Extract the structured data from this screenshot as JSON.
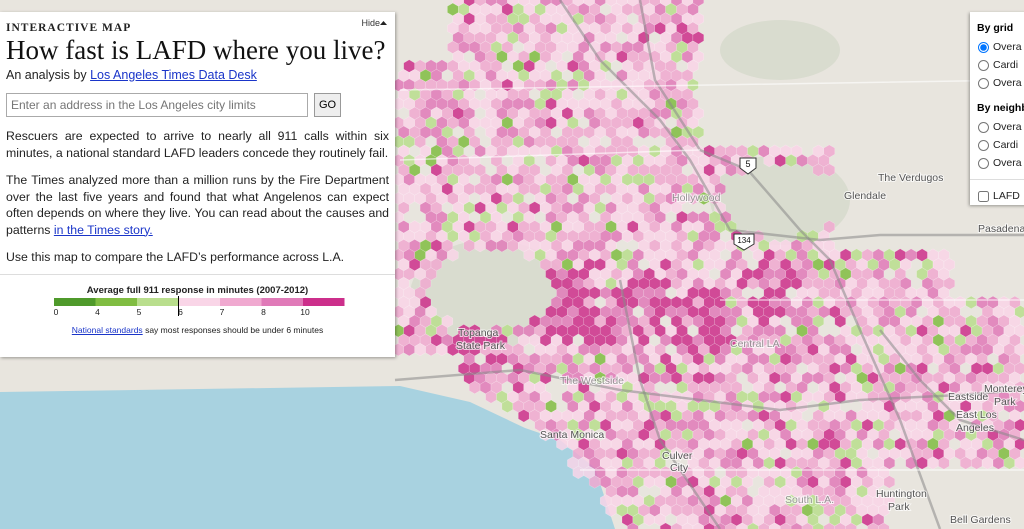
{
  "panel": {
    "kicker": "INTERACTIVE MAP",
    "hide": "Hide",
    "title": "How fast is LAFD where you live?",
    "byline_prefix": "An analysis by",
    "byline_link": "Los Angeles Times Data Desk",
    "search_placeholder": "Enter an address in the Los Angeles city limits",
    "go": "GO",
    "paragraph_1": "Rescuers are expected to arrive to nearly all 911 calls within six minutes, a national standard LAFD leaders concede they routinely fail.",
    "paragraph_2": "The Times analyzed more than a million runs by the Fire Department over the last five years and found that what Angelenos can expect often depends on where they live. You can read about the causes and patterns",
    "paragraph_2_link": "in the Times story.",
    "paragraph_3": "Use this map to compare the LAFD’s performance across L.A."
  },
  "legend": {
    "title": "Average full 911 response in minutes (2007-2012)",
    "colors": [
      "#4f9a2b",
      "#80bd42",
      "#b9de8d",
      "#f9d5e7",
      "#f0a9d0",
      "#e07ab8",
      "#cc2f8b"
    ],
    "ticks": [
      "0",
      "4",
      "5",
      "6",
      "7",
      "8",
      "10"
    ],
    "note_link": "National standards",
    "note_text": "say most responses should be under 6 minutes"
  },
  "options": {
    "groups": [
      {
        "label": "By grid",
        "items": [
          "Overa",
          "Cardi",
          "Overa"
        ]
      },
      {
        "label": "By neighb",
        "items": [
          "Overa",
          "Cardi",
          "Overa"
        ]
      }
    ],
    "checkbox": "LAFD"
  },
  "map_labels": [
    "The Verdugos",
    "Glendale",
    "Pasadena",
    "Topanga",
    "State Park",
    "Santa Monica",
    "Culver",
    "City",
    "Huntington",
    "Park",
    "Bell Gardens",
    "Monterey",
    "Park",
    "East Los",
    "Angeles",
    "Eastside",
    "The Westside",
    "Hollywood",
    "Central LA",
    "South L.A."
  ],
  "shields": [
    "5",
    "134"
  ]
}
